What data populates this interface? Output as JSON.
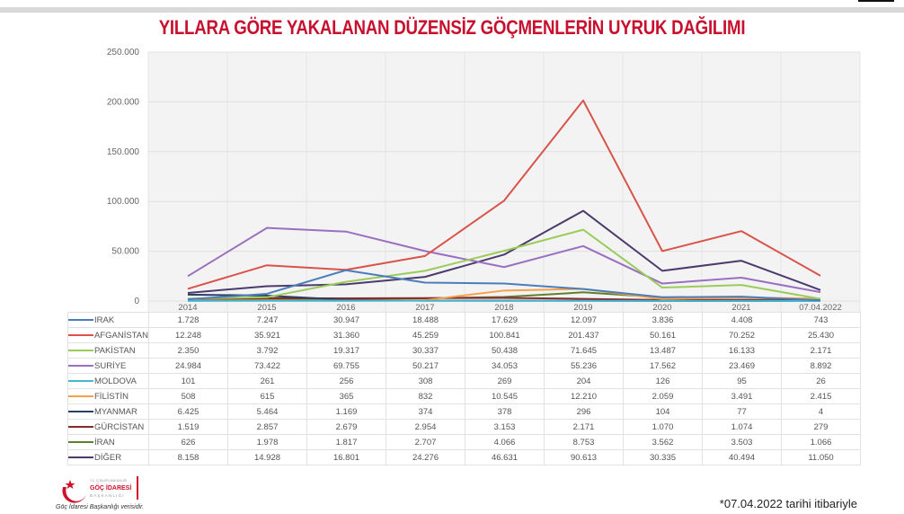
{
  "title": "YILLARA GÖRE YAKALANAN DÜZENSİZ GÖÇMENLERİN UYRUK DAĞILIMI",
  "footnote": "*07.04.2022 tarihi itibariyle",
  "source": "Göç İdaresi Başkanlığı verisidir.",
  "logo_text": "T.C. İÇİŞLERİ BAKANLIĞI GÖÇ İDARESİ BAŞKANLIĞI",
  "chart_data": {
    "type": "line",
    "title": "YILLARA GÖRE YAKALANAN DÜZENSİZ GÖÇMENLERİN UYRUK DAĞILIMI",
    "categories": [
      "2014",
      "2015",
      "2016",
      "2017",
      "2018",
      "2019",
      "2020",
      "2021",
      "07.04.2022"
    ],
    "ylim": [
      0,
      250000
    ],
    "yticks": [
      "0",
      "50.000",
      "100.000",
      "150.000",
      "200.000",
      "250.000"
    ],
    "grid": true,
    "legend": "data-table-below",
    "series": [
      {
        "name": "IRAK",
        "color": "#4a7ebb",
        "values": [
          1728,
          7247,
          30947,
          18488,
          17629,
          12097,
          3836,
          4408,
          743
        ],
        "labels": [
          "1.728",
          "7.247",
          "30.947",
          "18.488",
          "17.629",
          "12.097",
          "3.836",
          "4.408",
          "743"
        ]
      },
      {
        "name": "AFGANİSTAN",
        "color": "#d9534a",
        "values": [
          12248,
          35921,
          31360,
          45259,
          100841,
          201437,
          50161,
          70252,
          25430
        ],
        "labels": [
          "12.248",
          "35.921",
          "31.360",
          "45.259",
          "100.841",
          "201.437",
          "50.161",
          "70.252",
          "25.430"
        ]
      },
      {
        "name": "PAKİSTAN",
        "color": "#9bcc5a",
        "values": [
          2350,
          3792,
          19317,
          30337,
          50438,
          71645,
          13487,
          16133,
          2171
        ],
        "labels": [
          "2.350",
          "3.792",
          "19.317",
          "30.337",
          "50.438",
          "71.645",
          "13.487",
          "16.133",
          "2.171"
        ]
      },
      {
        "name": "SURİYE",
        "color": "#9b6fc0",
        "values": [
          24984,
          73422,
          69755,
          50217,
          34053,
          55236,
          17562,
          23469,
          8892
        ],
        "labels": [
          "24.984",
          "73.422",
          "69.755",
          "50.217",
          "34.053",
          "55.236",
          "17.562",
          "23.469",
          "8.892"
        ]
      },
      {
        "name": "MOLDOVA",
        "color": "#45b5d0",
        "values": [
          101,
          261,
          256,
          308,
          269,
          204,
          126,
          95,
          26
        ],
        "labels": [
          "101",
          "261",
          "256",
          "308",
          "269",
          "204",
          "126",
          "95",
          "26"
        ]
      },
      {
        "name": "FİLİSTİN",
        "color": "#f5a04a",
        "values": [
          508,
          615,
          365,
          832,
          10545,
          12210,
          2059,
          3491,
          2415
        ],
        "labels": [
          "508",
          "615",
          "365",
          "832",
          "10.545",
          "12.210",
          "2.059",
          "3.491",
          "2.415"
        ]
      },
      {
        "name": "MYANMAR",
        "color": "#2c3e66",
        "values": [
          6425,
          5464,
          1169,
          374,
          378,
          296,
          104,
          77,
          4
        ],
        "labels": [
          "6.425",
          "5.464",
          "1.169",
          "374",
          "378",
          "296",
          "104",
          "77",
          "4"
        ]
      },
      {
        "name": "GÜRCİSTAN",
        "color": "#8b2a2a",
        "values": [
          1519,
          2857,
          2679,
          2954,
          3153,
          2171,
          1070,
          1074,
          279
        ],
        "labels": [
          "1.519",
          "2.857",
          "2.679",
          "2.954",
          "3.153",
          "2.171",
          "1.070",
          "1.074",
          "279"
        ]
      },
      {
        "name": "İRAN",
        "color": "#5f7f2c",
        "values": [
          626,
          1978,
          1817,
          2707,
          4066,
          8753,
          3562,
          3503,
          1066
        ],
        "labels": [
          "626",
          "1.978",
          "1.817",
          "2.707",
          "4.066",
          "8.753",
          "3.562",
          "3.503",
          "1.066"
        ]
      },
      {
        "name": "DİĞER",
        "color": "#4b3a6b",
        "values": [
          8158,
          14928,
          16801,
          24276,
          46631,
          90613,
          30335,
          40494,
          11050
        ],
        "labels": [
          "8.158",
          "14.928",
          "16.801",
          "24.276",
          "46.631",
          "90.613",
          "30.335",
          "40.494",
          "11.050"
        ]
      }
    ]
  }
}
